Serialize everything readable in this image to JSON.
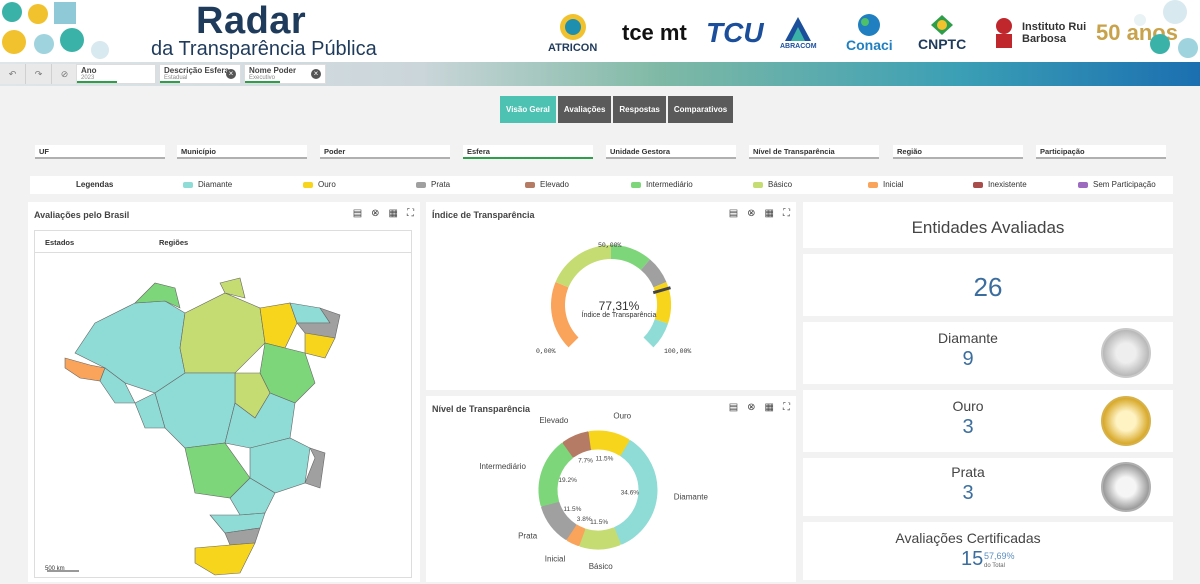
{
  "header": {
    "title": "Radar",
    "subtitle": "da Transparência Pública",
    "logos": [
      "ATRICON",
      "tce mt",
      "TCU",
      "ABRACOM",
      "Conaci",
      "CNPTC",
      "Instituto Rui Barbosa",
      "50 anos"
    ]
  },
  "selections": [
    {
      "label": "Ano",
      "value": "2023"
    },
    {
      "label": "Descrição Esfera",
      "value": "Estadual"
    },
    {
      "label": "Nome Poder",
      "value": "Executivo"
    }
  ],
  "nav_tabs": [
    "Visão Geral",
    "Avaliações",
    "Respostas",
    "Comparativos"
  ],
  "filters": [
    "UF",
    "Município",
    "Poder",
    "Esfera",
    "Unidade Gestora",
    "Nível de Transparência",
    "Região",
    "Participação"
  ],
  "legend": {
    "title": "Legendas",
    "items": [
      {
        "label": "Diamante",
        "color": "#8fdbd6"
      },
      {
        "label": "Ouro",
        "color": "#f7d51d"
      },
      {
        "label": "Prata",
        "color": "#a0a0a0"
      },
      {
        "label": "Elevado",
        "color": "#b57b64"
      },
      {
        "label": "Intermediário",
        "color": "#7ed67a"
      },
      {
        "label": "Básico",
        "color": "#c5dc72"
      },
      {
        "label": "Inicial",
        "color": "#f9a35b"
      },
      {
        "label": "Inexistente",
        "color": "#a94c4c"
      },
      {
        "label": "Sem Participação",
        "color": "#9c6bbf"
      }
    ]
  },
  "map_panel": {
    "title": "Avaliações pelo Brasil",
    "tabs": [
      "Estados",
      "Regiões"
    ],
    "scale": "500 km"
  },
  "gauge_panel": {
    "title": "Índice de Transparência",
    "value": "77,31%",
    "value_label": "Índice de Transparência",
    "min": "0,00%",
    "mid": "50,00%",
    "max": "100,00%"
  },
  "donut_panel": {
    "title": "Nível de Transparência"
  },
  "chart_data": [
    {
      "type": "gauge",
      "title": "Índice de Transparência",
      "value": 77.31,
      "range": [
        0,
        100
      ],
      "bands": [
        {
          "from": 0,
          "to": 25,
          "color": "#f9a35b"
        },
        {
          "from": 25,
          "to": 50,
          "color": "#c5dc72"
        },
        {
          "from": 50,
          "to": 65,
          "color": "#7ed67a"
        },
        {
          "from": 65,
          "to": 75,
          "color": "#a0a0a0"
        },
        {
          "from": 75,
          "to": 90,
          "color": "#f7d51d"
        },
        {
          "from": 90,
          "to": 100,
          "color": "#8fdbd6"
        }
      ]
    },
    {
      "type": "pie",
      "title": "Nível de Transparência",
      "slices": [
        {
          "label": "Diamante",
          "value": 34.6,
          "pct": "34.6%",
          "color": "#8fdbd6"
        },
        {
          "label": "Básico",
          "value": 11.5,
          "pct": "11.5%",
          "color": "#c5dc72"
        },
        {
          "label": "Inicial",
          "value": 3.8,
          "pct": "3.8%",
          "color": "#f9a35b"
        },
        {
          "label": "Prata",
          "value": 11.5,
          "pct": "11.5%",
          "color": "#a0a0a0"
        },
        {
          "label": "Intermediário",
          "value": 19.2,
          "pct": "19.2%",
          "color": "#7ed67a"
        },
        {
          "label": "Elevado",
          "value": 7.7,
          "pct": "7.7%",
          "color": "#b57b64"
        },
        {
          "label": "Ouro",
          "value": 11.5,
          "pct": "11.5%",
          "color": "#f7d51d"
        }
      ]
    }
  ],
  "kpis": {
    "entidades": {
      "label": "Entidades Avaliadas",
      "value": "26"
    },
    "diamante": {
      "label": "Diamante",
      "value": "9"
    },
    "ouro": {
      "label": "Ouro",
      "value": "3"
    },
    "prata": {
      "label": "Prata",
      "value": "3"
    },
    "certificadas": {
      "label": "Avaliações Certificadas",
      "value": "15",
      "pct": "57,69%",
      "pct_label": "do Total"
    }
  }
}
